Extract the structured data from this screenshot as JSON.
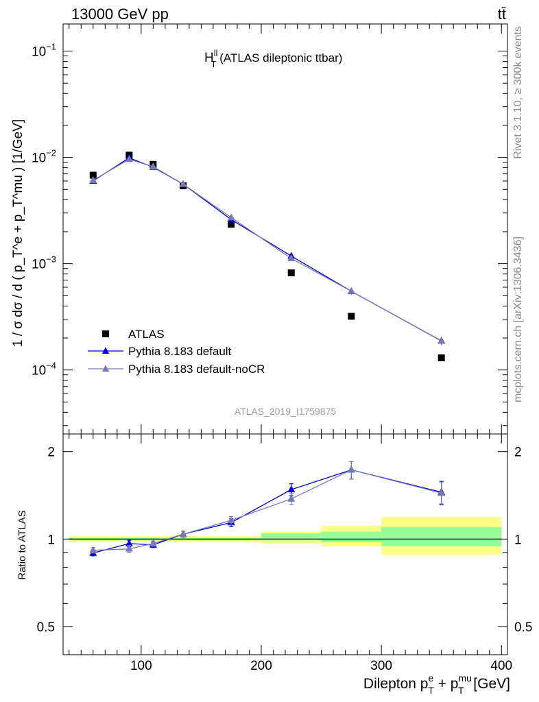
{
  "header": {
    "energy_label": "13000 GeV pp",
    "process_label": "tt̄"
  },
  "side_labels": {
    "rivet": "Rivet 3.1.10, ≥ 300k events",
    "mcplots": "mcplots.cern.ch [arXiv:1306.3436]"
  },
  "analysis_id": "ATLAS_2019_I1759875",
  "colors": {
    "data": "#000000",
    "pythia_default": "#0000dd",
    "pythia_nocr": "#7777bb",
    "band_inner": "#98fb98",
    "band_outer": "#ffff88"
  },
  "chart_data": [
    {
      "type": "scatter",
      "title": "H_T^ll (ATLAS dileptonic ttbar)",
      "title_main": "H",
      "title_sup": "ll",
      "title_sub": "T",
      "title_rest": " (ATLAS dileptonic ttbar)",
      "ylabel": "1 / σ  dσ / d ( p_T^e + p_T^mu ) [1/GeV]",
      "yscale": "log",
      "ylim": [
        2.5e-05,
        0.18
      ],
      "xlim": [
        35,
        405
      ],
      "y_ticks": [
        {
          "value": 0.1,
          "base": "10",
          "exp": "−1"
        },
        {
          "value": 0.01,
          "base": "10",
          "exp": "−2"
        },
        {
          "value": 0.001,
          "base": "10",
          "exp": "−3"
        },
        {
          "value": 0.0001,
          "base": "10",
          "exp": "−4"
        }
      ],
      "legend_position": "bottom-left",
      "legend": [
        {
          "name": "ATLAS",
          "marker": "square"
        },
        {
          "name": "Pythia 8.183 default",
          "marker": "triangle"
        },
        {
          "name": "Pythia 8.183 default-noCR",
          "marker": "triangle"
        }
      ],
      "series": [
        {
          "name": "ATLAS",
          "x": [
            60,
            90,
            110,
            135,
            175,
            225,
            275,
            350
          ],
          "values": [
            0.0068,
            0.0105,
            0.0086,
            0.0054,
            0.00235,
            0.00082,
            0.00032,
            0.00013
          ]
        },
        {
          "name": "Pythia 8.183 default",
          "x": [
            60,
            90,
            110,
            135,
            175,
            225,
            275,
            350
          ],
          "values": [
            0.006,
            0.0099,
            0.0081,
            0.0056,
            0.0026,
            0.00118,
            0.00055,
            0.000188
          ],
          "errors": [
            0.00015,
            0.0003,
            0.0002,
            0.00015,
            8e-05,
            5e-05,
            4e-05,
            1.6e-05
          ]
        },
        {
          "name": "Pythia 8.183 default-noCR",
          "x": [
            60,
            90,
            110,
            135,
            175,
            225,
            275,
            350
          ],
          "values": [
            0.0061,
            0.0096,
            0.0082,
            0.0056,
            0.00272,
            0.00112,
            0.00055,
            0.000187
          ],
          "errors": [
            0.00015,
            0.0003,
            0.0002,
            0.00015,
            8e-05,
            5e-05,
            4e-05,
            1.6e-05
          ]
        }
      ]
    },
    {
      "type": "line",
      "title": "",
      "ylabel": "Ratio to ATLAS",
      "xlabel": "Dilepton p_T^e + p_T^mu [GeV]",
      "xlabel_main": "Dilepton p",
      "xlabel_sup1": "e",
      "xlabel_sub1": "T",
      "xlabel_plus": " + p",
      "xlabel_sup2": "mu",
      "xlabel_sub2": "T",
      "xlabel_unit": " [GeV]",
      "yscale": "log",
      "ylim": [
        0.4,
        2.3
      ],
      "xlim": [
        35,
        405
      ],
      "x_ticks": [
        {
          "value": 100,
          "label": "100"
        },
        {
          "value": 200,
          "label": "200"
        },
        {
          "value": 300,
          "label": "300"
        },
        {
          "value": 400,
          "label": "400"
        }
      ],
      "y_ticks": [
        {
          "value": 0.5,
          "label": "0.5"
        },
        {
          "value": 1,
          "label": "1"
        },
        {
          "value": 2,
          "label": "2"
        }
      ],
      "uncertainty_bands": [
        {
          "x_low": 40,
          "x_high": 200,
          "inner": [
            0.99,
            1.01
          ],
          "outer": [
            0.975,
            1.025
          ]
        },
        {
          "x_low": 200,
          "x_high": 250,
          "inner": [
            0.99,
            1.045
          ],
          "outer": [
            0.965,
            1.06
          ]
        },
        {
          "x_low": 250,
          "x_high": 300,
          "inner": [
            0.975,
            1.06
          ],
          "outer": [
            0.945,
            1.11
          ]
        },
        {
          "x_low": 300,
          "x_high": 400,
          "inner": [
            0.945,
            1.1
          ],
          "outer": [
            0.885,
            1.19
          ]
        }
      ],
      "series": [
        {
          "name": "Pythia 8.183 default",
          "x": [
            60,
            90,
            110,
            135,
            175,
            225,
            275,
            350
          ],
          "values": [
            0.895,
            0.965,
            0.955,
            1.04,
            1.14,
            1.48,
            1.73,
            1.45
          ],
          "errors": [
            0.02,
            0.025,
            0.02,
            0.025,
            0.035,
            0.07,
            0.12,
            0.13
          ]
        },
        {
          "name": "Pythia 8.183 default-noCR",
          "x": [
            60,
            90,
            110,
            135,
            175,
            225,
            275,
            350
          ],
          "values": [
            0.915,
            0.925,
            0.965,
            1.04,
            1.16,
            1.375,
            1.73,
            1.44
          ],
          "errors": [
            0.02,
            0.025,
            0.02,
            0.025,
            0.035,
            0.06,
            0.12,
            0.13
          ]
        }
      ]
    }
  ]
}
